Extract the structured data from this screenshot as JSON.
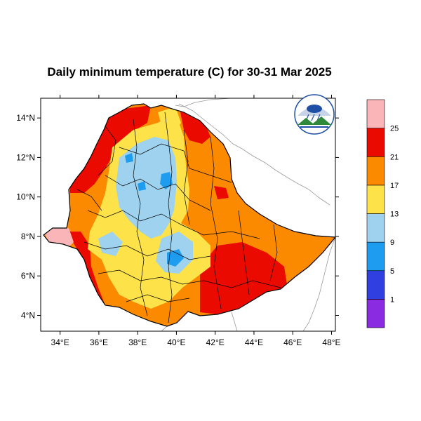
{
  "title": "Daily minimum temperature (C) for 30-31 Mar 2025",
  "map": {
    "lon_range": [
      33,
      48.2
    ],
    "lat_range": [
      3.2,
      15.0
    ],
    "x_ticks": [
      {
        "value": 34,
        "label": "34°E"
      },
      {
        "value": 36,
        "label": "36°E"
      },
      {
        "value": 38,
        "label": "38°E"
      },
      {
        "value": 40,
        "label": "40°E"
      },
      {
        "value": 42,
        "label": "42°E"
      },
      {
        "value": 44,
        "label": "44°E"
      },
      {
        "value": 46,
        "label": "46°E"
      },
      {
        "value": 48,
        "label": "48°E"
      }
    ],
    "y_ticks": [
      {
        "value": 4,
        "label": "4°N"
      },
      {
        "value": 6,
        "label": "6°N"
      },
      {
        "value": 8,
        "label": "8°N"
      },
      {
        "value": 10,
        "label": "10°N"
      },
      {
        "value": 12,
        "label": "12°N"
      },
      {
        "value": 14,
        "label": "14°N"
      }
    ]
  },
  "colorbar": {
    "colors": [
      "#8a2be2",
      "#2f3fe0",
      "#1e9cf0",
      "#9fd2ef",
      "#fde24a",
      "#fb8a00",
      "#ea0a00",
      "#f9b5b8"
    ],
    "labels": [
      "1",
      "5",
      "9",
      "13",
      "17",
      "21",
      "25"
    ]
  },
  "logo": {
    "colors": {
      "sky": "#1f4fa5",
      "hills": "#2e8a3a",
      "ring": "#1f4fa5"
    }
  }
}
